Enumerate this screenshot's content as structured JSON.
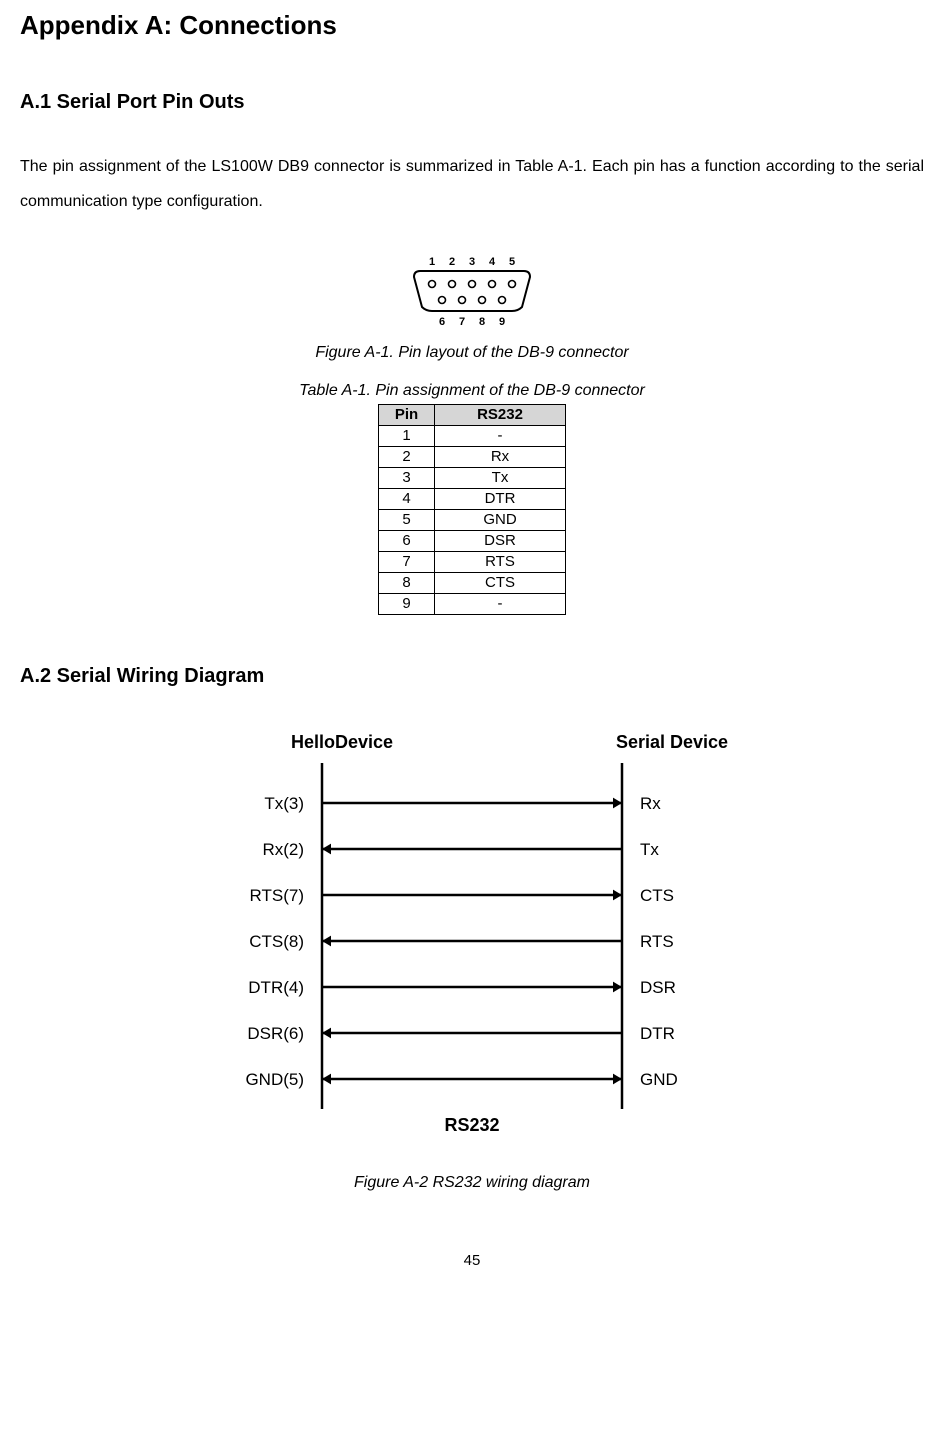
{
  "title": "Appendix A: Connections",
  "sectionA1": {
    "heading": "A.1 Serial Port Pin Outs",
    "paragraph": "The pin assignment of the LS100W DB9 connector is summarized in Table A-1. Each pin has a function according to the serial communication type configuration."
  },
  "db9": {
    "topPins": [
      "1",
      "2",
      "3",
      "4",
      "5"
    ],
    "bottomPins": [
      "6",
      "7",
      "8",
      "9"
    ],
    "caption": "Figure A-1. Pin layout of the DB-9 connector"
  },
  "tableA1": {
    "caption": "Table A-1. Pin assignment of the DB-9 connector",
    "columns": [
      "Pin",
      "RS232"
    ],
    "rows": [
      [
        "1",
        "-"
      ],
      [
        "2",
        "Rx"
      ],
      [
        "3",
        "Tx"
      ],
      [
        "4",
        "DTR"
      ],
      [
        "5",
        "GND"
      ],
      [
        "6",
        "DSR"
      ],
      [
        "7",
        "RTS"
      ],
      [
        "8",
        "CTS"
      ],
      [
        "9",
        "-"
      ]
    ]
  },
  "sectionA2": {
    "heading": "A.2 Serial Wiring Diagram"
  },
  "wiring": {
    "leftTitle": "HelloDevice",
    "rightTitle": "Serial Device",
    "leftLabels": [
      "Tx(3)",
      "Rx(2)",
      "RTS(7)",
      "CTS(8)",
      "DTR(4)",
      "DSR(6)",
      "GND(5)"
    ],
    "rightLabels": [
      "Rx",
      "Tx",
      "CTS",
      "RTS",
      "DSR",
      "DTR",
      "GND"
    ],
    "arrowDir": [
      "right",
      "left",
      "right",
      "left",
      "right",
      "left",
      "both"
    ],
    "centerLabel": "RS232",
    "caption": "Figure A-2 RS232 wiring diagram",
    "lineColor": "#000000",
    "labelFontSize": 17,
    "titleFontSize": 18
  },
  "pageNumber": "45"
}
